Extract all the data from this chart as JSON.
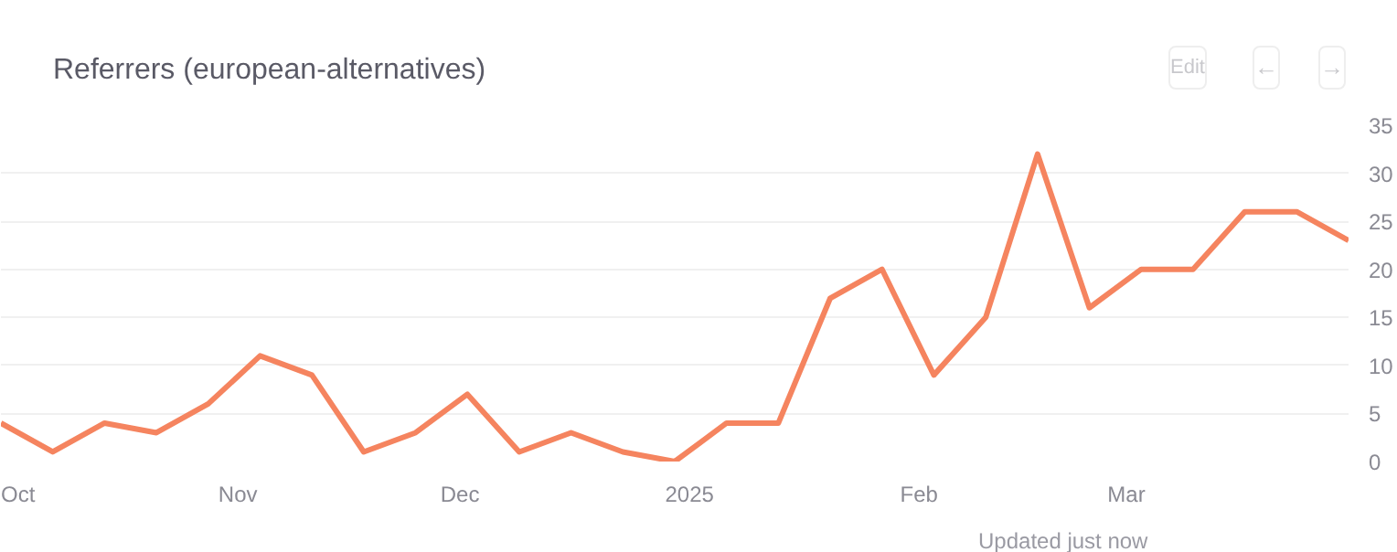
{
  "chart_data": {
    "type": "line",
    "title": "Referrers (european-alternatives)",
    "x": [
      "2024-09-30",
      "2024-10-07",
      "2024-10-14",
      "2024-10-21",
      "2024-10-28",
      "2024-11-04",
      "2024-11-11",
      "2024-11-18",
      "2024-11-25",
      "2024-12-02",
      "2024-12-09",
      "2024-12-16",
      "2024-12-23",
      "2024-12-30",
      "2025-01-06",
      "2025-01-13",
      "2025-01-20",
      "2025-01-27",
      "2025-02-03",
      "2025-02-10",
      "2025-02-17",
      "2025-02-24",
      "2025-03-03",
      "2025-03-10",
      "2025-03-17",
      "2025-03-24",
      "2025-03-31"
    ],
    "series": [
      {
        "color": "#f5845f",
        "values": [
          4,
          1,
          4,
          3,
          6,
          11,
          9,
          1,
          3,
          7,
          1,
          3,
          1,
          0,
          4,
          4,
          17,
          20,
          9,
          15,
          32,
          16,
          20,
          20,
          26,
          26,
          23
        ]
      }
    ],
    "xlim": [
      "2024-09-30",
      "2025-03-31"
    ],
    "xticks": [
      {
        "value": "2024-10-01",
        "label": "Oct"
      },
      {
        "value": "2024-11-01",
        "label": "Nov"
      },
      {
        "value": "2024-12-01",
        "label": "Dec"
      },
      {
        "value": "2025-01-01",
        "label": "2025"
      },
      {
        "value": "2025-02-01",
        "label": "Feb"
      },
      {
        "value": "2025-03-01",
        "label": "Mar"
      }
    ],
    "ylim": [
      0,
      35
    ],
    "yticks": [
      0,
      5,
      10,
      15,
      20,
      25,
      30,
      35
    ],
    "grid": "y",
    "marker": "none",
    "line_style": "solid",
    "annotations": [
      "Updated just now",
      "Edit",
      "←",
      "→"
    ]
  }
}
